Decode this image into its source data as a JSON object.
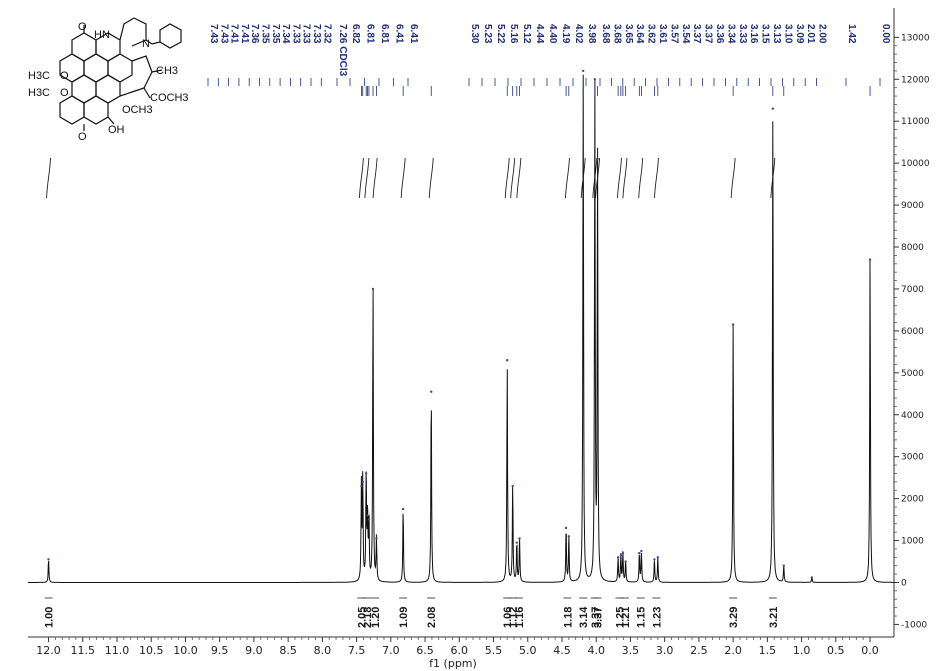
{
  "chart_data": {
    "type": "line",
    "title": "",
    "xlabel": "f1 (ppm)",
    "ylabel": "",
    "xlim": [
      12.3,
      -0.35
    ],
    "ylim": [
      -1300,
      13700
    ],
    "x_ticks": [
      "12.0",
      "11.5",
      "11.0",
      "10.5",
      "10.0",
      "9.5",
      "9.0",
      "8.5",
      "8.0",
      "7.5",
      "7.0",
      "6.5",
      "6.0",
      "5.5",
      "5.0",
      "4.5",
      "4.0",
      "3.5",
      "3.0",
      "2.5",
      "2.0",
      "1.5",
      "1.0",
      "0.5",
      "0.0"
    ],
    "y_ticks": [
      "-1000",
      "0",
      "1000",
      "2000",
      "3000",
      "4000",
      "5000",
      "6000",
      "7000",
      "8000",
      "9000",
      "10000",
      "11000",
      "12000",
      "13000"
    ],
    "peaks": [
      {
        "x": 12.0,
        "y": 550
      },
      {
        "x": 7.43,
        "y": 2300
      },
      {
        "x": 7.41,
        "y": 2400
      },
      {
        "x": 7.36,
        "y": 2600
      },
      {
        "x": 7.34,
        "y": 1600
      },
      {
        "x": 7.32,
        "y": 1500
      },
      {
        "x": 7.26,
        "y": 7000
      },
      {
        "x": 7.21,
        "y": 1050
      },
      {
        "x": 6.82,
        "y": 1750
      },
      {
        "x": 6.41,
        "y": 4550
      },
      {
        "x": 5.3,
        "y": 5300
      },
      {
        "x": 5.22,
        "y": 2300
      },
      {
        "x": 5.16,
        "y": 950
      },
      {
        "x": 5.12,
        "y": 1050
      },
      {
        "x": 4.44,
        "y": 1300
      },
      {
        "x": 4.4,
        "y": 1100
      },
      {
        "x": 4.19,
        "y": 12200
      },
      {
        "x": 4.02,
        "y": 12000
      },
      {
        "x": 3.98,
        "y": 10100
      },
      {
        "x": 3.68,
        "y": 600
      },
      {
        "x": 3.64,
        "y": 650
      },
      {
        "x": 3.61,
        "y": 700
      },
      {
        "x": 3.57,
        "y": 500
      },
      {
        "x": 3.37,
        "y": 700
      },
      {
        "x": 3.34,
        "y": 750
      },
      {
        "x": 3.15,
        "y": 550
      },
      {
        "x": 3.1,
        "y": 600
      },
      {
        "x": 2.0,
        "y": 6150
      },
      {
        "x": 1.42,
        "y": 11300
      },
      {
        "x": 1.26,
        "y": 400
      },
      {
        "x": 0.85,
        "y": 120
      },
      {
        "x": 0.0,
        "y": 7700
      }
    ],
    "peak_labels": [
      "7.43",
      "7.43",
      "7.41",
      "7.41",
      "7.36",
      "7.35",
      "7.35",
      "7.34",
      "7.33",
      "7.33",
      "7.33",
      "7.32",
      "7.26 CDCl3",
      "6.82",
      "6.81",
      "6.81",
      "6.41",
      "6.41",
      "5.30",
      "5.23",
      "5.22",
      "5.16",
      "5.12",
      "4.44",
      "4.40",
      "4.19",
      "4.02",
      "3.98",
      "3.68",
      "3.68",
      "3.65",
      "3.64",
      "3.62",
      "3.61",
      "3.57",
      "3.54",
      "3.37",
      "3.37",
      "3.36",
      "3.34",
      "3.33",
      "3.16",
      "3.15",
      "3.13",
      "3.10",
      "3.09",
      "2.01",
      "2.00",
      "1.42",
      "0.00"
    ],
    "integrals": [
      {
        "x": 12.0,
        "label": "1.00"
      },
      {
        "x": 7.43,
        "label": "2.05"
      },
      {
        "x": 7.35,
        "label": "2.18"
      },
      {
        "x": 7.23,
        "label": "1.20"
      },
      {
        "x": 6.82,
        "label": "1.09"
      },
      {
        "x": 6.41,
        "label": "2.08"
      },
      {
        "x": 5.3,
        "label": "1.06"
      },
      {
        "x": 5.22,
        "label": "1.12"
      },
      {
        "x": 5.13,
        "label": "1.16"
      },
      {
        "x": 4.42,
        "label": "1.18"
      },
      {
        "x": 4.19,
        "label": "3.14"
      },
      {
        "x": 4.02,
        "label": "3.37"
      },
      {
        "x": 3.98,
        "label": "3.37"
      },
      {
        "x": 3.66,
        "label": "1.25"
      },
      {
        "x": 3.58,
        "label": "1.21"
      },
      {
        "x": 3.35,
        "label": "1.15"
      },
      {
        "x": 3.12,
        "label": "1.23"
      },
      {
        "x": 2.0,
        "label": "3.29"
      },
      {
        "x": 1.42,
        "label": "3.21"
      }
    ],
    "molecule": {
      "labels": [
        "HN",
        "N",
        "H3C",
        "O",
        "H3C",
        "O",
        "O",
        "O",
        "CH3",
        "COCH3",
        "OCH3",
        "OH"
      ]
    }
  }
}
